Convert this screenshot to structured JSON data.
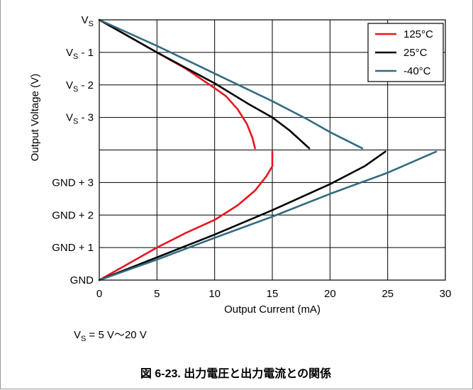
{
  "chart_data": {
    "type": "line",
    "xlabel": "Output Current (mA)",
    "ylabel": "Output Voltage (V)",
    "xlim": [
      0,
      30
    ],
    "x_ticks": [
      "0",
      "5",
      "10",
      "15",
      "20",
      "25",
      "30"
    ],
    "y_ticks_upper": [
      {
        "base": "V",
        "sub": "S",
        "rest": ""
      },
      {
        "base": "V",
        "sub": "S",
        "rest": " - 1"
      },
      {
        "base": "V",
        "sub": "S",
        "rest": " - 2"
      },
      {
        "base": "V",
        "sub": "S",
        "rest": " - 3"
      }
    ],
    "y_ticks_lower": [
      "GND + 3",
      "GND + 2",
      "GND + 1",
      "GND"
    ],
    "grid": true,
    "legend_position": "top-right",
    "series": [
      {
        "name": "125°C",
        "color": "#e8141e",
        "high": [
          [
            0,
            0
          ],
          [
            2.5,
            -0.5
          ],
          [
            5,
            -1.0
          ],
          [
            7.5,
            -1.5
          ],
          [
            10,
            -2.1
          ],
          [
            11,
            -2.35
          ],
          [
            12,
            -2.75
          ],
          [
            12.8,
            -3.2
          ],
          [
            13.3,
            -3.65
          ],
          [
            13.5,
            -3.95
          ]
        ],
        "low": [
          [
            0,
            0
          ],
          [
            2.5,
            0.5
          ],
          [
            5,
            1.0
          ],
          [
            7.5,
            1.45
          ],
          [
            10,
            1.85
          ],
          [
            12,
            2.3
          ],
          [
            13.5,
            2.75
          ],
          [
            14.5,
            3.2
          ],
          [
            15,
            3.5
          ],
          [
            15,
            3.95
          ]
        ]
      },
      {
        "name": "25°C",
        "color": "#000000",
        "high": [
          [
            0,
            0
          ],
          [
            5,
            -1.0
          ],
          [
            10,
            -1.95
          ],
          [
            13,
            -2.6
          ],
          [
            15,
            -3.0
          ],
          [
            16.5,
            -3.4
          ],
          [
            18.2,
            -3.95
          ]
        ],
        "low": [
          [
            0,
            0
          ],
          [
            5,
            0.7
          ],
          [
            10,
            1.4
          ],
          [
            15,
            2.15
          ],
          [
            20,
            2.95
          ],
          [
            23,
            3.5
          ],
          [
            24.8,
            3.95
          ]
        ]
      },
      {
        "name": "-40°C",
        "color": "#336b82",
        "high": [
          [
            0,
            0
          ],
          [
            5,
            -0.8
          ],
          [
            10,
            -1.65
          ],
          [
            15,
            -2.5
          ],
          [
            18,
            -3.05
          ],
          [
            20,
            -3.45
          ],
          [
            22.8,
            -3.95
          ]
        ],
        "low": [
          [
            0,
            0
          ],
          [
            5,
            0.63
          ],
          [
            10,
            1.3
          ],
          [
            15,
            1.95
          ],
          [
            20,
            2.65
          ],
          [
            25,
            3.3
          ],
          [
            29.2,
            3.95
          ]
        ]
      }
    ]
  },
  "note": {
    "base": "V",
    "sub": "S",
    "rest": " = 5 V～20 V"
  },
  "caption": "図 6-23. 出力電圧と出力電流との関係"
}
